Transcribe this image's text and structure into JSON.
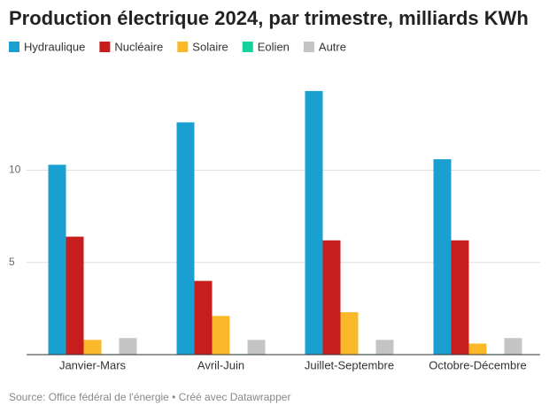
{
  "chart_data": {
    "type": "bar",
    "title": "Production électrique 2024, par trimestre, milliards KWh",
    "source": "Source: Office fédéral de l'énergie • Créé avec Datawrapper",
    "categories": [
      "Janvier-Mars",
      "Avril-Juin",
      "Juillet-Septembre",
      "Octobre-Décembre"
    ],
    "series": [
      {
        "name": "Hydraulique",
        "color": "#1aa0d0",
        "values": [
          10.3,
          12.6,
          14.3,
          10.6
        ]
      },
      {
        "name": "Nucléaire",
        "color": "#c71e1d",
        "values": [
          6.4,
          4.0,
          6.2,
          6.2
        ]
      },
      {
        "name": "Solaire",
        "color": "#fbb829",
        "values": [
          0.8,
          2.1,
          2.3,
          0.6
        ]
      },
      {
        "name": "Eolien",
        "color": "#15d19b",
        "values": [
          0.03,
          0.03,
          0.03,
          0.03
        ]
      },
      {
        "name": "Autre",
        "color": "#c4c4c4",
        "values": [
          0.9,
          0.8,
          0.8,
          0.9
        ]
      }
    ],
    "ylim": [
      0,
      15.4
    ],
    "yticks": [
      5,
      10
    ],
    "grid": true
  }
}
